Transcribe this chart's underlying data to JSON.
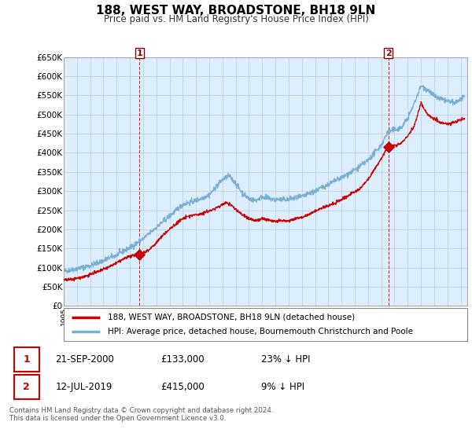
{
  "title": "188, WEST WAY, BROADSTONE, BH18 9LN",
  "subtitle": "Price paid vs. HM Land Registry's House Price Index (HPI)",
  "ylabel_ticks": [
    "£0",
    "£50K",
    "£100K",
    "£150K",
    "£200K",
    "£250K",
    "£300K",
    "£350K",
    "£400K",
    "£450K",
    "£500K",
    "£550K",
    "£600K",
    "£650K"
  ],
  "ylim": [
    0,
    650000
  ],
  "xlim_start": 1995.0,
  "xlim_end": 2025.5,
  "sale1_x": 2000.72,
  "sale1_y": 133000,
  "sale1_label": "1",
  "sale1_date": "21-SEP-2000",
  "sale1_price": "£133,000",
  "sale1_pct": "23% ↓ HPI",
  "sale2_x": 2019.53,
  "sale2_y": 415000,
  "sale2_label": "2",
  "sale2_date": "12-JUL-2019",
  "sale2_price": "£415,000",
  "sale2_pct": "9% ↓ HPI",
  "line_color_house": "#cc0000",
  "line_color_hpi": "#7aafd4",
  "chart_bg_color": "#ddeeff",
  "legend_label_house": "188, WEST WAY, BROADSTONE, BH18 9LN (detached house)",
  "legend_label_hpi": "HPI: Average price, detached house, Bournemouth Christchurch and Poole",
  "footnote": "Contains HM Land Registry data © Crown copyright and database right 2024.\nThis data is licensed under the Open Government Licence v3.0.",
  "background_color": "#ffffff",
  "grid_color": "#bbccdd"
}
